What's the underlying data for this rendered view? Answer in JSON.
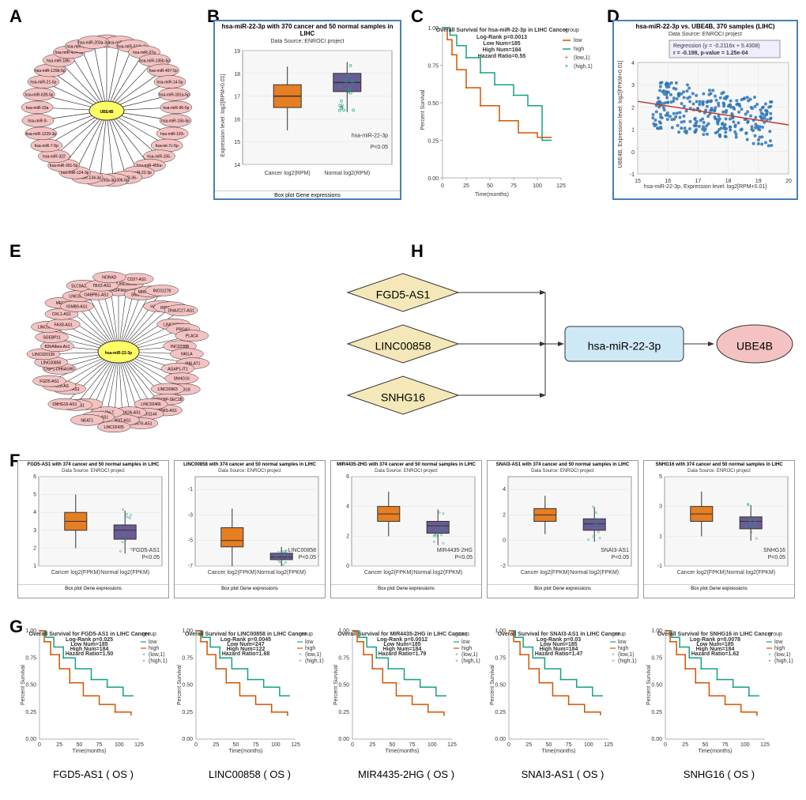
{
  "labels": {
    "A": "A",
    "B": "B",
    "C": "C",
    "D": "D",
    "E": "E",
    "F": "F",
    "G": "G",
    "H": "H"
  },
  "colors": {
    "cancer": "#e67e22",
    "normal": "#6b5b95",
    "node_center": "#ffff66",
    "node_outer": "#f4c2c2",
    "low_curve": "#d35400",
    "high_curve": "#16a085",
    "scatter_point": "#2e75b6",
    "reg_line": "#c0392b",
    "diamond": "#f5e8b8",
    "flow_rect": "#cfe8f5",
    "background": "#ffffff"
  },
  "panelA": {
    "center": "UBE4B",
    "nodes": [
      "hsa-miR-129-5p",
      "hsa-miR-23a-",
      "hsa-miR-513b-5p",
      "hsa-miR-27a",
      "hsa-miR-135b-5p",
      "hsa-miR-497-5p",
      "hsa-miR-14-5p",
      "hsa-miR-181a-5p",
      "hsa-miR-96-5p",
      "hsa-miR-15b-5p",
      "hsa-miR-193-",
      "hsa-let-7c-5p",
      "hsa-miR-155-",
      "hsa-miR-455a-",
      "hsa-miR-22-3p",
      "hsa-miR-36-",
      "hsa-miR-1306-5p",
      "hsa-miR-193a-3p",
      "hsa-miR-134-3p",
      "hsa-miR-124-3p",
      "hsa-miR-301-5p",
      "hsa-miR-322",
      "hsa-miR-7-5p",
      "hsa-miR-1229-3p",
      "hsa-miR-9-",
      "hsa-miR-19a",
      "hsa-miR-628-5p",
      "hsa-miR-21-5p",
      "hsa-miR-129b-5p",
      "hsa-miR-186-",
      "hsa-miR-424-5p",
      "hsa-miR-23b-3p",
      "hsa-miR-203a-3p"
    ]
  },
  "panelB": {
    "title": "hsa-miR-22-3p with 370 cancer and 50 normal samples in LIHC",
    "subtitle": "Data Source: ENROCI project",
    "ylabel": "Expression level: log2[RPM+0.01]",
    "cancer_label": "Cancer log2(RPM)",
    "normal_label": "Normal log2(RPM)",
    "pvalue": "hsa-miR-22-3p\nP<0.05",
    "legend": "Box plot   Gene expressions",
    "cancer": {
      "q1": 16.5,
      "med": 17.0,
      "q3": 17.5,
      "low": 15.5,
      "high": 18.3,
      "color": "#e67e22"
    },
    "normal": {
      "q1": 17.2,
      "med": 17.6,
      "q3": 18.0,
      "low": 16.3,
      "high": 18.5,
      "color": "#6b5b95"
    },
    "ylim": [
      14,
      19
    ]
  },
  "panelC": {
    "title": "Overall Survival for hsa-miR-22-3p in LIHC Cancer",
    "stats": "Log-Rank p=0.0013\nLow Num=185\nHigh Num=184\nHazard Ratio=0.55",
    "xlabel": "Time(months)",
    "ylabel": "Percent Survival",
    "legend": [
      "low",
      "high",
      "(low,1)",
      "(high,1)"
    ],
    "xlim": [
      0,
      125
    ],
    "ylim": [
      0,
      1
    ],
    "low_color": "#d35400",
    "high_color": "#16a085"
  },
  "panelD": {
    "title": "hsa-miR-22-3p vs. UBE4B, 370 samples (LIHC)",
    "subtitle": "Data Source: ENROCI project",
    "reg": "Regression (y = -0.2116x + 5.4308)",
    "corr": "r = -0.198, p-value = 1.25e-04",
    "xlabel": "hsa-miR-22-3p, Expression level: log2[RPM+0.01]",
    "ylabel": "UBE4B, Expression level: log2[FPKM+0.01]",
    "xlim": [
      15,
      20
    ],
    "ylim": [
      -1,
      4
    ],
    "point_color": "#2e75b6",
    "line_color": "#c0392b"
  },
  "panelE": {
    "center": "hsa-miR-22-3p",
    "nodes": [
      "HRS4-AS1",
      "LINC00993",
      "CD27-AS1",
      "SMB8-AS1",
      "MIR4435-2HG",
      "INC01278",
      "HAP7-AS1",
      "RPM2-AS1",
      "DNAJC27-AS1",
      "LINC00266",
      "PRGA3",
      "PLAC4",
      "INC0238B",
      "NKILA",
      "MALAT1",
      "AGAP1-IT1",
      "SNHG16",
      "HCG18",
      "LINC00963",
      "SCP1BP-SEC1B",
      "UBPMS-AS1",
      "LINC02466",
      "LINC01144",
      "CANT6-AS1",
      "DRA2A-AS1",
      "NNT-AS1",
      "LINC02435",
      "LLRH-T",
      "AP4B1-AS1",
      "NEAT1",
      "FTX",
      "OIP5-AS1",
      "SNHG16-AS1",
      "IRVH3-AS1",
      "TTC28-AS",
      "FGD5-AS1",
      "DSP1-DH6ASR0",
      "LINC00858",
      "LINC020139",
      "B3hAlbea-As1",
      "SGEBP11",
      "LINC00453",
      "FAX8-AS1",
      "OXL1-AS1",
      "MEG3",
      "IGMB9-AS1",
      "LINC00637",
      "SLC9A3-AS1",
      "OABPB1-AS1",
      "TBX2-AS1",
      "NORAD"
    ]
  },
  "panelF": {
    "plots": [
      {
        "name": "FGD5-AS1",
        "title": "FGD5-AS1 with 374 cancer and 50 normal samples in LIHC",
        "pvalue": "FGD5-AS1\nP<0.05",
        "cancer": {
          "q1": 3.0,
          "med": 3.5,
          "q3": 4.0
        },
        "normal": {
          "q1": 2.5,
          "med": 3.0,
          "q3": 3.3
        },
        "ylim": [
          1,
          6
        ]
      },
      {
        "name": "LINC00858",
        "title": "LINC00858 with 374 cancer and 50 normal samples in LIHC",
        "pvalue": "LINC00858\nP<0.05",
        "cancer": {
          "q1": -5.5,
          "med": -5.0,
          "q3": -4.0
        },
        "normal": {
          "q1": -6.5,
          "med": -6.3,
          "q3": -6.0
        },
        "ylim": [
          -7,
          0
        ]
      },
      {
        "name": "MIR4435-2HG",
        "title": "MIR4435-2HG with 374 cancer and 50 normal samples in LIHC",
        "pvalue": "MIR4435-2HG\nP<0.05",
        "cancer": {
          "q1": 3.0,
          "med": 3.5,
          "q3": 4.0
        },
        "normal": {
          "q1": 2.2,
          "med": 2.7,
          "q3": 3.0
        },
        "ylim": [
          0,
          6
        ]
      },
      {
        "name": "SNAI3-AS1",
        "title": "SNAI3-AS1 with 374 cancer and 50 normal samples in LIHC",
        "pvalue": "SNAI3-AS1\nP<0.05",
        "cancer": {
          "q1": 1.5,
          "med": 2.0,
          "q3": 2.5
        },
        "normal": {
          "q1": 0.8,
          "med": 1.3,
          "q3": 1.7
        },
        "ylim": [
          -2,
          5
        ]
      },
      {
        "name": "SNHG16",
        "title": "SNHG16 with 374 cancer and 50 normal samples in LIHC",
        "pvalue": "SNHG16\nP<0.05",
        "cancer": {
          "q1": 2.0,
          "med": 2.5,
          "q3": 3.0
        },
        "normal": {
          "q1": 1.5,
          "med": 2.0,
          "q3": 2.3
        },
        "ylim": [
          -1,
          5
        ]
      }
    ],
    "subtitle": "Data Source: ENROCI project",
    "legend": "Box plot   Gene expressions",
    "cancer_label": "Cancer log2(FPKM)",
    "normal_label": "Normal log2(FPKM)"
  },
  "panelG": {
    "plots": [
      {
        "name": "FGD5-AS1 ( OS )",
        "title": "Overall Survival for FGD5-AS1 in LIHC Cancer",
        "stats": "Log-Rank p=0.025\nLow Num=185\nHigh Num=184\nHazard Ratio=1.50"
      },
      {
        "name": "LINC00858 ( OS )",
        "title": "Overall Survival for LINC00858 in LIHC Cancer",
        "stats": "Log-Rank p=0.0045\nLow Num=247\nHigh Num=122\nHazard Ratio=1.68"
      },
      {
        "name": "MIR4435-2HG ( OS )",
        "title": "Overall Survival for MIR4435-2HG in LIHC Cancer",
        "stats": "Log-Rank p=0.0012\nLow Num=185\nHigh Num=184\nHazard Ratio=1.79"
      },
      {
        "name": "SNAI3-AS1 ( OS )",
        "title": "Overall Survival for SNAI3-AS1 in LIHC Cancer",
        "stats": "Log-Rank p=0.03\nLow Num=185\nHigh Num=184\nHazard Ratio=1.47"
      },
      {
        "name": "SNHG16 ( OS )",
        "title": "Overall Survival for SNHG16 in LIHC Cancer",
        "stats": "Log-Rank p=0.0078\nLow Num=185\nHigh Num=184\nHazard Ratio=1.62"
      }
    ],
    "xlabel": "Time(months)",
    "ylabel": "Percent Survival",
    "xlim": [
      0,
      125
    ],
    "ylim": [
      0,
      1
    ],
    "low_color": "#16a085",
    "high_color": "#d35400"
  },
  "panelH": {
    "diamonds": [
      "FGD5-AS1",
      "LINC00858",
      "SNHG16"
    ],
    "rect": "hsa-miR-22-3p",
    "ellipse": "UBE4B"
  }
}
